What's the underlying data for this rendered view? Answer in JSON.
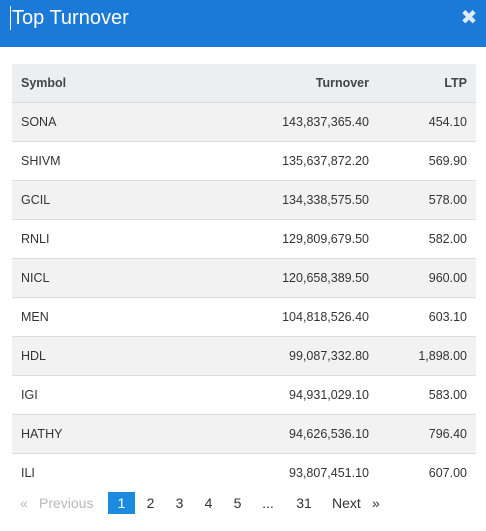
{
  "modal": {
    "title": "Top Turnover",
    "close_glyph": "✖",
    "close_icon": "close-icon"
  },
  "table": {
    "headers": {
      "symbol": "Symbol",
      "turnover": "Turnover",
      "ltp": "LTP"
    },
    "rows": [
      {
        "symbol": "SONA",
        "turnover": "143,837,365.40",
        "ltp": "454.10"
      },
      {
        "symbol": "SHIVM",
        "turnover": "135,637,872.20",
        "ltp": "569.90"
      },
      {
        "symbol": "GCIL",
        "turnover": "134,338,575.50",
        "ltp": "578.00"
      },
      {
        "symbol": "RNLI",
        "turnover": "129,809,679.50",
        "ltp": "582.00"
      },
      {
        "symbol": "NICL",
        "turnover": "120,658,389.50",
        "ltp": "960.00"
      },
      {
        "symbol": "MEN",
        "turnover": "104,818,526.40",
        "ltp": "603.10"
      },
      {
        "symbol": "HDL",
        "turnover": "99,087,332.80",
        "ltp": "1,898.00"
      },
      {
        "symbol": "IGI",
        "turnover": "94,931,029.10",
        "ltp": "583.00"
      },
      {
        "symbol": "HATHY",
        "turnover": "94,626,536.10",
        "ltp": "796.40"
      },
      {
        "symbol": "ILI",
        "turnover": "93,807,451.10",
        "ltp": "607.00"
      }
    ]
  },
  "pagination": {
    "prev_arrow": "«",
    "previous": "Previous",
    "pages": [
      "1",
      "2",
      "3",
      "4",
      "5"
    ],
    "ellipsis": "...",
    "last": "31",
    "next": "Next",
    "next_arrow": "»",
    "current_page": "1"
  },
  "colors": {
    "header_bg": "#1b7ad8",
    "active_page_bg": "#1b8be0",
    "row_striped_bg": "#f2f2f2",
    "table_head_bg": "#eceff1"
  }
}
